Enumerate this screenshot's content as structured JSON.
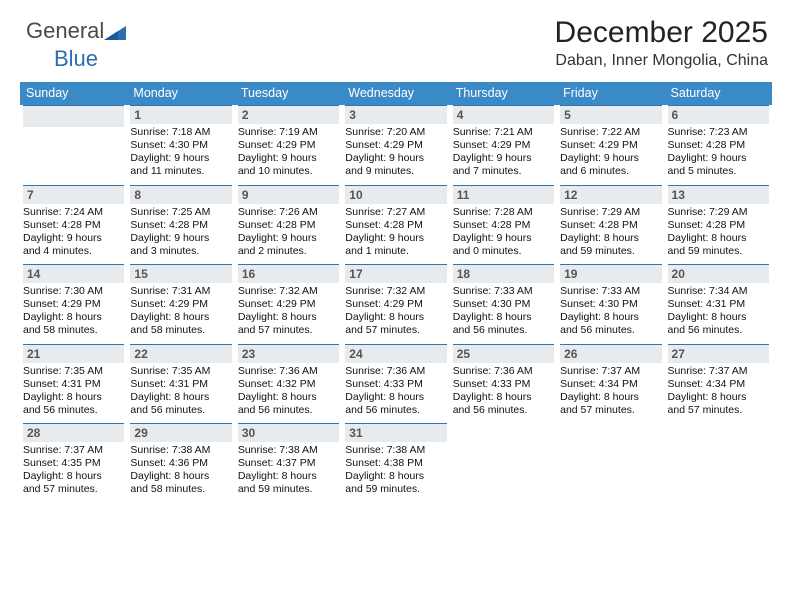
{
  "brand": {
    "text1": "General",
    "text2": "Blue"
  },
  "title": "December 2025",
  "location": "Daban, Inner Mongolia, China",
  "colors": {
    "header_bg": "#3a8ac8",
    "header_text": "#ffffff",
    "day_bar_bg": "#e8ebee",
    "day_bar_border": "#2e76b2",
    "text": "#111111"
  },
  "day_names": [
    "Sunday",
    "Monday",
    "Tuesday",
    "Wednesday",
    "Thursday",
    "Friday",
    "Saturday"
  ],
  "weeks": [
    [
      {
        "day": "",
        "sunrise": "",
        "sunset": "",
        "daylight1": "",
        "daylight2": ""
      },
      {
        "day": "1",
        "sunrise": "Sunrise: 7:18 AM",
        "sunset": "Sunset: 4:30 PM",
        "daylight1": "Daylight: 9 hours",
        "daylight2": "and 11 minutes."
      },
      {
        "day": "2",
        "sunrise": "Sunrise: 7:19 AM",
        "sunset": "Sunset: 4:29 PM",
        "daylight1": "Daylight: 9 hours",
        "daylight2": "and 10 minutes."
      },
      {
        "day": "3",
        "sunrise": "Sunrise: 7:20 AM",
        "sunset": "Sunset: 4:29 PM",
        "daylight1": "Daylight: 9 hours",
        "daylight2": "and 9 minutes."
      },
      {
        "day": "4",
        "sunrise": "Sunrise: 7:21 AM",
        "sunset": "Sunset: 4:29 PM",
        "daylight1": "Daylight: 9 hours",
        "daylight2": "and 7 minutes."
      },
      {
        "day": "5",
        "sunrise": "Sunrise: 7:22 AM",
        "sunset": "Sunset: 4:29 PM",
        "daylight1": "Daylight: 9 hours",
        "daylight2": "and 6 minutes."
      },
      {
        "day": "6",
        "sunrise": "Sunrise: 7:23 AM",
        "sunset": "Sunset: 4:28 PM",
        "daylight1": "Daylight: 9 hours",
        "daylight2": "and 5 minutes."
      }
    ],
    [
      {
        "day": "7",
        "sunrise": "Sunrise: 7:24 AM",
        "sunset": "Sunset: 4:28 PM",
        "daylight1": "Daylight: 9 hours",
        "daylight2": "and 4 minutes."
      },
      {
        "day": "8",
        "sunrise": "Sunrise: 7:25 AM",
        "sunset": "Sunset: 4:28 PM",
        "daylight1": "Daylight: 9 hours",
        "daylight2": "and 3 minutes."
      },
      {
        "day": "9",
        "sunrise": "Sunrise: 7:26 AM",
        "sunset": "Sunset: 4:28 PM",
        "daylight1": "Daylight: 9 hours",
        "daylight2": "and 2 minutes."
      },
      {
        "day": "10",
        "sunrise": "Sunrise: 7:27 AM",
        "sunset": "Sunset: 4:28 PM",
        "daylight1": "Daylight: 9 hours",
        "daylight2": "and 1 minute."
      },
      {
        "day": "11",
        "sunrise": "Sunrise: 7:28 AM",
        "sunset": "Sunset: 4:28 PM",
        "daylight1": "Daylight: 9 hours",
        "daylight2": "and 0 minutes."
      },
      {
        "day": "12",
        "sunrise": "Sunrise: 7:29 AM",
        "sunset": "Sunset: 4:28 PM",
        "daylight1": "Daylight: 8 hours",
        "daylight2": "and 59 minutes."
      },
      {
        "day": "13",
        "sunrise": "Sunrise: 7:29 AM",
        "sunset": "Sunset: 4:28 PM",
        "daylight1": "Daylight: 8 hours",
        "daylight2": "and 59 minutes."
      }
    ],
    [
      {
        "day": "14",
        "sunrise": "Sunrise: 7:30 AM",
        "sunset": "Sunset: 4:29 PM",
        "daylight1": "Daylight: 8 hours",
        "daylight2": "and 58 minutes."
      },
      {
        "day": "15",
        "sunrise": "Sunrise: 7:31 AM",
        "sunset": "Sunset: 4:29 PM",
        "daylight1": "Daylight: 8 hours",
        "daylight2": "and 58 minutes."
      },
      {
        "day": "16",
        "sunrise": "Sunrise: 7:32 AM",
        "sunset": "Sunset: 4:29 PM",
        "daylight1": "Daylight: 8 hours",
        "daylight2": "and 57 minutes."
      },
      {
        "day": "17",
        "sunrise": "Sunrise: 7:32 AM",
        "sunset": "Sunset: 4:29 PM",
        "daylight1": "Daylight: 8 hours",
        "daylight2": "and 57 minutes."
      },
      {
        "day": "18",
        "sunrise": "Sunrise: 7:33 AM",
        "sunset": "Sunset: 4:30 PM",
        "daylight1": "Daylight: 8 hours",
        "daylight2": "and 56 minutes."
      },
      {
        "day": "19",
        "sunrise": "Sunrise: 7:33 AM",
        "sunset": "Sunset: 4:30 PM",
        "daylight1": "Daylight: 8 hours",
        "daylight2": "and 56 minutes."
      },
      {
        "day": "20",
        "sunrise": "Sunrise: 7:34 AM",
        "sunset": "Sunset: 4:31 PM",
        "daylight1": "Daylight: 8 hours",
        "daylight2": "and 56 minutes."
      }
    ],
    [
      {
        "day": "21",
        "sunrise": "Sunrise: 7:35 AM",
        "sunset": "Sunset: 4:31 PM",
        "daylight1": "Daylight: 8 hours",
        "daylight2": "and 56 minutes."
      },
      {
        "day": "22",
        "sunrise": "Sunrise: 7:35 AM",
        "sunset": "Sunset: 4:31 PM",
        "daylight1": "Daylight: 8 hours",
        "daylight2": "and 56 minutes."
      },
      {
        "day": "23",
        "sunrise": "Sunrise: 7:36 AM",
        "sunset": "Sunset: 4:32 PM",
        "daylight1": "Daylight: 8 hours",
        "daylight2": "and 56 minutes."
      },
      {
        "day": "24",
        "sunrise": "Sunrise: 7:36 AM",
        "sunset": "Sunset: 4:33 PM",
        "daylight1": "Daylight: 8 hours",
        "daylight2": "and 56 minutes."
      },
      {
        "day": "25",
        "sunrise": "Sunrise: 7:36 AM",
        "sunset": "Sunset: 4:33 PM",
        "daylight1": "Daylight: 8 hours",
        "daylight2": "and 56 minutes."
      },
      {
        "day": "26",
        "sunrise": "Sunrise: 7:37 AM",
        "sunset": "Sunset: 4:34 PM",
        "daylight1": "Daylight: 8 hours",
        "daylight2": "and 57 minutes."
      },
      {
        "day": "27",
        "sunrise": "Sunrise: 7:37 AM",
        "sunset": "Sunset: 4:34 PM",
        "daylight1": "Daylight: 8 hours",
        "daylight2": "and 57 minutes."
      }
    ],
    [
      {
        "day": "28",
        "sunrise": "Sunrise: 7:37 AM",
        "sunset": "Sunset: 4:35 PM",
        "daylight1": "Daylight: 8 hours",
        "daylight2": "and 57 minutes."
      },
      {
        "day": "29",
        "sunrise": "Sunrise: 7:38 AM",
        "sunset": "Sunset: 4:36 PM",
        "daylight1": "Daylight: 8 hours",
        "daylight2": "and 58 minutes."
      },
      {
        "day": "30",
        "sunrise": "Sunrise: 7:38 AM",
        "sunset": "Sunset: 4:37 PM",
        "daylight1": "Daylight: 8 hours",
        "daylight2": "and 59 minutes."
      },
      {
        "day": "31",
        "sunrise": "Sunrise: 7:38 AM",
        "sunset": "Sunset: 4:38 PM",
        "daylight1": "Daylight: 8 hours",
        "daylight2": "and 59 minutes."
      },
      {
        "day": "",
        "sunrise": "",
        "sunset": "",
        "daylight1": "",
        "daylight2": ""
      },
      {
        "day": "",
        "sunrise": "",
        "sunset": "",
        "daylight1": "",
        "daylight2": ""
      },
      {
        "day": "",
        "sunrise": "",
        "sunset": "",
        "daylight1": "",
        "daylight2": ""
      }
    ]
  ]
}
